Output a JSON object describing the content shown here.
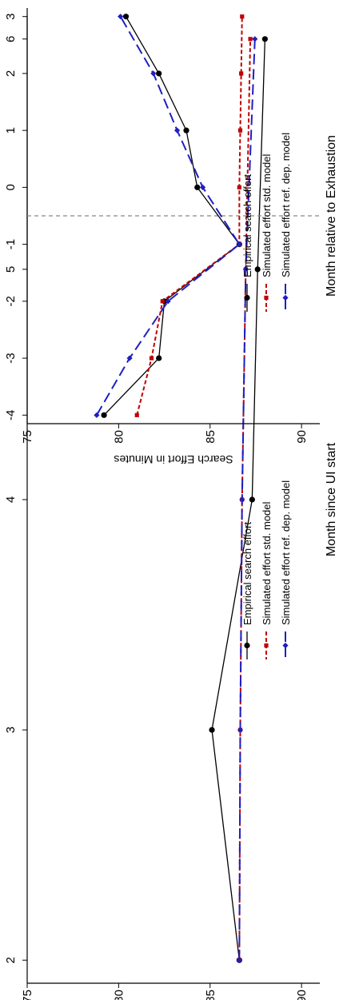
{
  "chart_data": [
    {
      "type": "line",
      "xlabel": "Month since UI start",
      "ylabel": "Search Effort in Minutes",
      "x": [
        2,
        3,
        4,
        5,
        6
      ],
      "xticks": [
        "2",
        "3",
        "4",
        "5",
        "6"
      ],
      "yticks": [
        "75",
        "80",
        "85",
        "90"
      ],
      "ylim": [
        75,
        91
      ],
      "xlim": [
        1.9,
        6.1
      ],
      "series": [
        {
          "name": "Empirical search effort",
          "values": [
            86.6,
            85.1,
            87.3,
            87.6,
            88.0
          ],
          "color": "#000000",
          "dash": "solid",
          "marker": "circle"
        },
        {
          "name": "Simulated effort std. model",
          "values": [
            86.6,
            86.65,
            86.75,
            86.95,
            87.2
          ],
          "color": "#c00000",
          "dash": "short",
          "marker": "square"
        },
        {
          "name": "Simulated effort ref. dep. model",
          "values": [
            86.6,
            86.65,
            86.75,
            86.95,
            87.45
          ],
          "color": "#1f1fc0",
          "dash": "long",
          "marker": "diamond"
        }
      ],
      "legend_position": "lower-right"
    },
    {
      "type": "line",
      "xlabel": "Month relative to Exhaustion",
      "ylabel": "Search Effort in Minutes",
      "x": [
        -4,
        -3,
        -2,
        -1,
        0,
        1,
        2,
        3
      ],
      "xticks": [
        "-4",
        "-3",
        "-2",
        "-1",
        "0",
        "1",
        "2",
        "3"
      ],
      "yticks": [
        "75",
        "80",
        "85",
        "90"
      ],
      "ylim": [
        75,
        91
      ],
      "xlim": [
        -4.15,
        3.15
      ],
      "vline": -0.5,
      "series": [
        {
          "name": "Empirical search effort",
          "values": [
            79.2,
            82.2,
            82.5,
            86.6,
            84.3,
            83.7,
            82.2,
            80.4
          ],
          "color": "#000000",
          "dash": "solid",
          "marker": "circle"
        },
        {
          "name": "Simulated effort std. model",
          "values": [
            81.0,
            81.8,
            82.4,
            86.6,
            86.6,
            86.65,
            86.7,
            86.75
          ],
          "color": "#c00000",
          "dash": "short",
          "marker": "square"
        },
        {
          "name": "Simulated effort ref. dep. model",
          "values": [
            78.8,
            80.6,
            82.7,
            86.6,
            84.6,
            83.2,
            81.9,
            80.1
          ],
          "color": "#1f1fc0",
          "dash": "long",
          "marker": "diamond"
        }
      ],
      "legend_position": "lower-right"
    }
  ]
}
